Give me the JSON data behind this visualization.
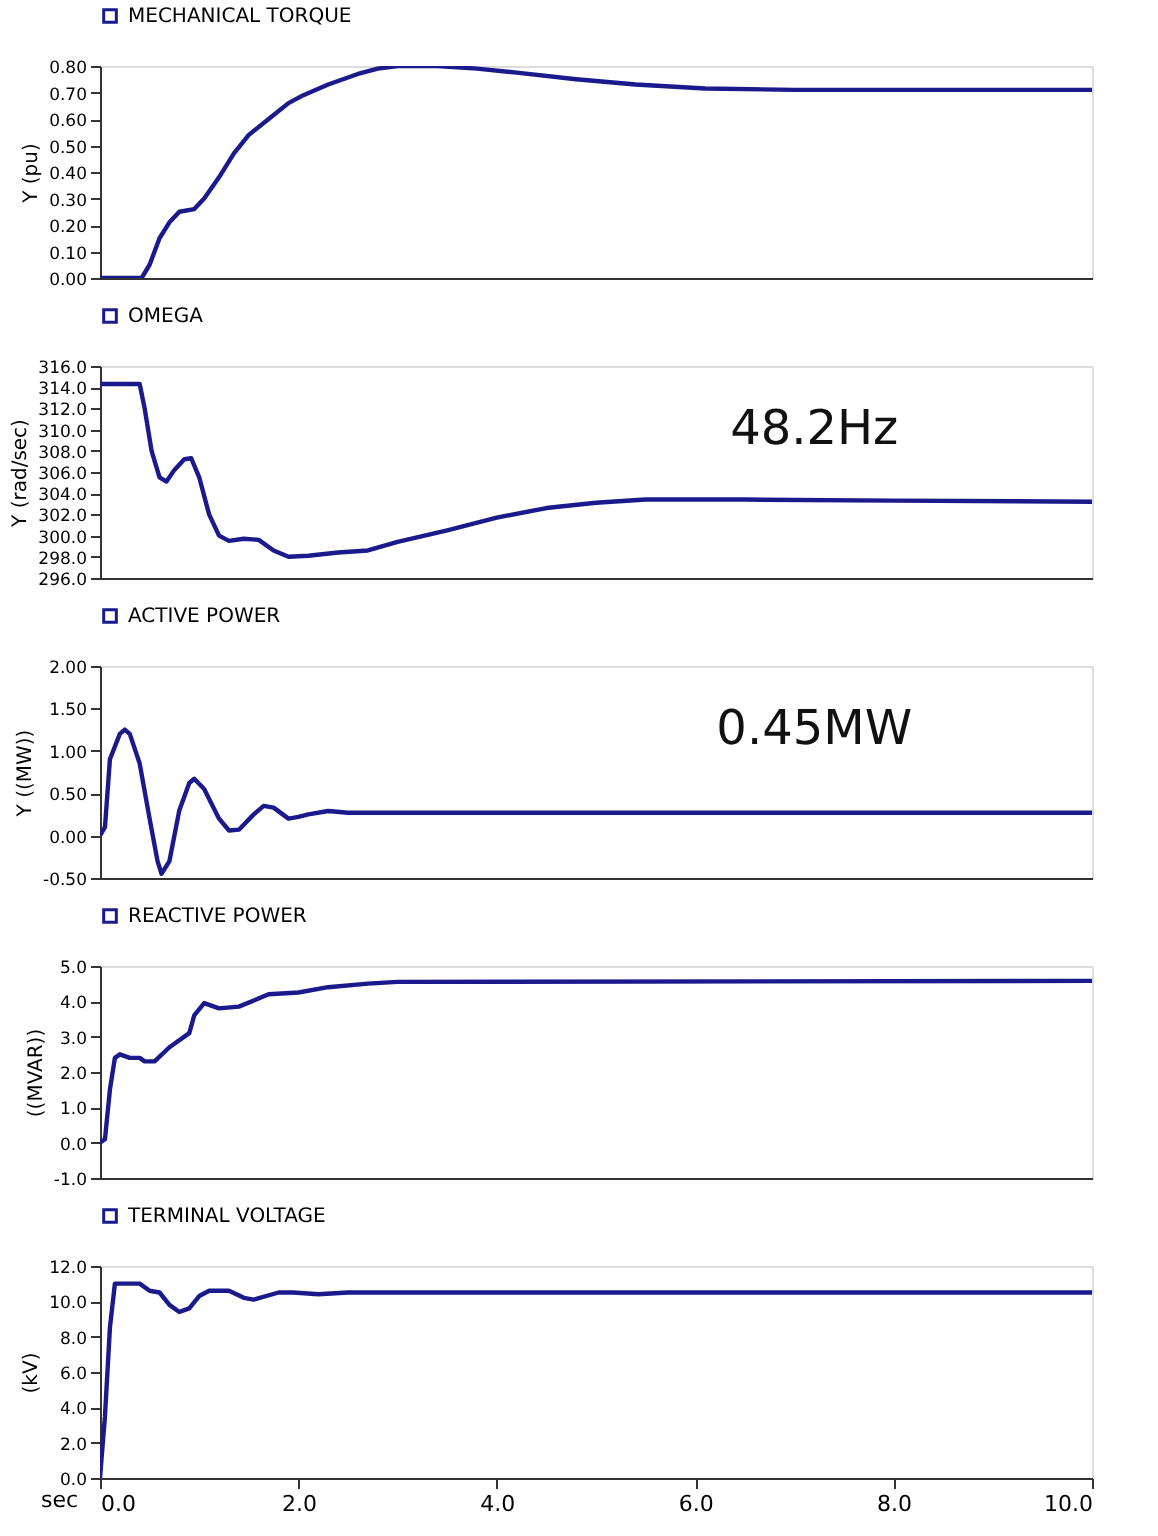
{
  "chart_data": [
    {
      "type": "line",
      "ylabel": "Y (pu)",
      "legend": "top left",
      "grid": false,
      "tick_labels": "y",
      "xlim": [
        0,
        10
      ],
      "ylim": [
        0,
        0.8
      ],
      "yticks": [
        {
          "value": 0,
          "label": "0.00"
        },
        {
          "value": 0.1,
          "label": "0.10"
        },
        {
          "value": 0.2,
          "label": "0.20"
        },
        {
          "value": 0.3,
          "label": "0.30"
        },
        {
          "value": 0.4,
          "label": "0.40"
        },
        {
          "value": 0.5,
          "label": "0.50"
        },
        {
          "value": 0.6,
          "label": "0.60"
        },
        {
          "value": 0.7,
          "label": "0.70"
        },
        {
          "value": 0.8,
          "label": "0.80"
        }
      ],
      "x": [
        0,
        0.42,
        0.5,
        0.6,
        0.7,
        0.8,
        0.95,
        1.05,
        1.2,
        1.35,
        1.5,
        1.7,
        1.9,
        2.05,
        2.3,
        2.6,
        2.8,
        3.0,
        3.4,
        3.8,
        4.2,
        4.8,
        5.4,
        6.1,
        7,
        10
      ],
      "series": [
        {
          "name": "MECHANICAL TORQUE",
          "color": "#1a1a8c",
          "values": [
            0,
            0,
            0.05,
            0.15,
            0.21,
            0.25,
            0.26,
            0.3,
            0.38,
            0.47,
            0.54,
            0.6,
            0.66,
            0.69,
            0.73,
            0.77,
            0.79,
            0.8,
            0.8,
            0.79,
            0.775,
            0.75,
            0.73,
            0.715,
            0.71,
            0.71
          ]
        }
      ]
    },
    {
      "type": "line",
      "ylabel": "Y (rad/sec)",
      "legend": "top left",
      "grid": false,
      "tick_labels": "y",
      "xlim": [
        0,
        10
      ],
      "ylim": [
        296,
        316
      ],
      "yticks": [
        {
          "value": 296,
          "label": "296.0"
        },
        {
          "value": 298,
          "label": "298.0"
        },
        {
          "value": 300,
          "label": "300.0"
        },
        {
          "value": 302,
          "label": "302.0"
        },
        {
          "value": 304,
          "label": "304.0"
        },
        {
          "value": 306,
          "label": "306.0"
        },
        {
          "value": 308,
          "label": "308.0"
        },
        {
          "value": 310,
          "label": "310.0"
        },
        {
          "value": 312,
          "label": "312.0"
        },
        {
          "value": 314,
          "label": "314.0"
        },
        {
          "value": 316,
          "label": "316.0"
        }
      ],
      "x": [
        0,
        0.4,
        0.45,
        0.52,
        0.6,
        0.67,
        0.75,
        0.85,
        0.92,
        1.0,
        1.1,
        1.2,
        1.3,
        1.45,
        1.6,
        1.75,
        1.9,
        2.1,
        2.4,
        2.7,
        3.0,
        3.5,
        4.0,
        4.5,
        5.0,
        5.5,
        6.5,
        8,
        10
      ],
      "series": [
        {
          "name": "OMEGA",
          "color": "#1a1a8c",
          "values": [
            314.3,
            314.3,
            312,
            308,
            305.5,
            305.1,
            306.2,
            307.2,
            307.3,
            305.5,
            302,
            300,
            299.5,
            299.7,
            299.6,
            298.6,
            298,
            298.1,
            298.4,
            298.6,
            299.4,
            300.5,
            301.7,
            302.6,
            303.1,
            303.4,
            303.4,
            303.3,
            303.2
          ]
        }
      ],
      "annotations": [
        "48.2Hz"
      ]
    },
    {
      "type": "line",
      "ylabel": "Y ((MW))",
      "legend": "top left",
      "grid": false,
      "tick_labels": "y",
      "xlim": [
        0,
        10
      ],
      "ylim": [
        -0.5,
        2
      ],
      "yticks": [
        {
          "value": -0.5,
          "label": "-0.50"
        },
        {
          "value": 0,
          "label": "0.00"
        },
        {
          "value": 0.5,
          "label": "0.50"
        },
        {
          "value": 1,
          "label": "1.00"
        },
        {
          "value": 1.5,
          "label": "1.50"
        },
        {
          "value": 2,
          "label": "2.00"
        }
      ],
      "x": [
        0,
        0.05,
        0.1,
        0.2,
        0.25,
        0.3,
        0.4,
        0.5,
        0.58,
        0.62,
        0.7,
        0.8,
        0.9,
        0.95,
        1.05,
        1.2,
        1.3,
        1.4,
        1.55,
        1.65,
        1.75,
        1.9,
        2.0,
        2.1,
        2.3,
        2.5,
        10
      ],
      "series": [
        {
          "name": "ACTIVE POWER",
          "color": "#1a1a8c",
          "values": [
            0,
            0.1,
            0.9,
            1.2,
            1.25,
            1.2,
            0.85,
            0.2,
            -0.3,
            -0.45,
            -0.3,
            0.3,
            0.62,
            0.67,
            0.55,
            0.2,
            0.06,
            0.07,
            0.25,
            0.35,
            0.33,
            0.2,
            0.22,
            0.25,
            0.29,
            0.27,
            0.27
          ]
        }
      ],
      "annotations": [
        "0.45MW"
      ]
    },
    {
      "type": "line",
      "ylabel": "((MVAR))",
      "legend": "top left",
      "grid": false,
      "tick_labels": "y",
      "xlim": [
        0,
        10
      ],
      "ylim": [
        -1,
        5
      ],
      "yticks": [
        {
          "value": -1,
          "label": "-1.0"
        },
        {
          "value": 0,
          "label": "0.0"
        },
        {
          "value": 1,
          "label": "1.0"
        },
        {
          "value": 2,
          "label": "2.0"
        },
        {
          "value": 3,
          "label": "3.0"
        },
        {
          "value": 4,
          "label": "4.0"
        },
        {
          "value": 5,
          "label": "5.0"
        }
      ],
      "x": [
        0,
        0.05,
        0.1,
        0.15,
        0.2,
        0.3,
        0.4,
        0.45,
        0.55,
        0.7,
        0.9,
        0.95,
        1.05,
        1.2,
        1.4,
        1.7,
        2.0,
        2.3,
        2.7,
        3.0,
        10
      ],
      "series": [
        {
          "name": "REACTIVE POWER",
          "color": "#1a1a8c",
          "values": [
            0,
            0.1,
            1.5,
            2.4,
            2.5,
            2.4,
            2.4,
            2.3,
            2.3,
            2.7,
            3.1,
            3.6,
            3.95,
            3.8,
            3.85,
            4.2,
            4.25,
            4.4,
            4.5,
            4.55,
            4.58
          ]
        }
      ]
    },
    {
      "type": "line",
      "xlabel": "sec",
      "ylabel": "(kV)",
      "legend": "top left",
      "grid": false,
      "xlim": [
        0,
        10
      ],
      "ylim": [
        0,
        12
      ],
      "xticks": [
        {
          "value": 0,
          "label": "0.0"
        },
        {
          "value": 2,
          "label": "2.0"
        },
        {
          "value": 4,
          "label": "4.0"
        },
        {
          "value": 6,
          "label": "6.0"
        },
        {
          "value": 8,
          "label": "8.0"
        },
        {
          "value": 10,
          "label": "10.0"
        }
      ],
      "yticks": [
        {
          "value": 0,
          "label": "0.0"
        },
        {
          "value": 2,
          "label": "2.0"
        },
        {
          "value": 4,
          "label": "4.0"
        },
        {
          "value": 6,
          "label": "6.0"
        },
        {
          "value": 8,
          "label": "8.0"
        },
        {
          "value": 10,
          "label": "10.0"
        },
        {
          "value": 12,
          "label": "12.0"
        }
      ],
      "x": [
        0,
        0.05,
        0.1,
        0.15,
        0.4,
        0.5,
        0.6,
        0.7,
        0.8,
        0.9,
        1.0,
        1.1,
        1.3,
        1.45,
        1.55,
        1.8,
        1.95,
        2.2,
        2.5,
        3,
        10
      ],
      "series": [
        {
          "name": "TERMINAL VOLTAGE",
          "color": "#1a1a8c",
          "values": [
            0,
            3.5,
            8.5,
            11.0,
            11.0,
            10.6,
            10.5,
            9.8,
            9.4,
            9.6,
            10.3,
            10.6,
            10.6,
            10.2,
            10.1,
            10.5,
            10.5,
            10.4,
            10.5,
            10.5,
            10.5
          ]
        }
      ]
    }
  ]
}
